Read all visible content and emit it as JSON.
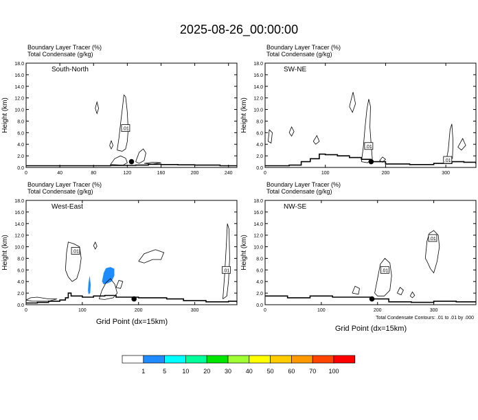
{
  "title": "2025-08-26_00:00:00",
  "panel_header_line1": "Boundary Layer Tracer   (%)",
  "panel_header_line2": "Total Condensate   (g/kg)",
  "ylabel": "Height (km)",
  "xlabel": "Grid Point (dx=15km)",
  "contour_note": "Total Condensate Contours: .01 to .01 by .000",
  "colorbar": {
    "colors": [
      "#ffffff",
      "#1e8cff",
      "#00ffff",
      "#00ff9a",
      "#00e600",
      "#a0ff32",
      "#ffff00",
      "#ffcc00",
      "#ff9900",
      "#ff4400",
      "#ff0000"
    ],
    "labels": [
      "1",
      "5",
      "10",
      "20",
      "30",
      "40",
      "50",
      "60",
      "70",
      "100"
    ]
  },
  "chart_data": [
    {
      "type": "contour",
      "name": "South-North",
      "xlim": [
        0,
        250
      ],
      "ylim": [
        0,
        18
      ],
      "xticks": [
        "0",
        "40",
        "80",
        "120",
        "160",
        "200",
        "240"
      ],
      "xtick_values": [
        0,
        40,
        80,
        120,
        160,
        200,
        240
      ],
      "yticks": [
        "0.0",
        "2.0",
        "4.0",
        "6.0",
        "8.0",
        "10.0",
        "12.0",
        "14.0",
        "16.0",
        "18.0"
      ],
      "contour_label": ".01",
      "contour_label_pos": [
        118,
        6.8
      ],
      "marker": [
        125,
        1.0
      ],
      "terrain": [
        [
          0,
          0.3
        ],
        [
          60,
          0.3
        ],
        [
          100,
          0.35
        ],
        [
          130,
          0.4
        ],
        [
          145,
          0.55
        ],
        [
          160,
          0.5
        ],
        [
          180,
          0.45
        ],
        [
          200,
          0.4
        ],
        [
          230,
          0.3
        ],
        [
          250,
          0.3
        ]
      ],
      "contours": [
        [
          [
            108,
            3.0
          ],
          [
            110,
            5.0
          ],
          [
            112,
            7.5
          ],
          [
            114,
            10.0
          ],
          [
            116,
            12.5
          ],
          [
            118,
            12.2
          ],
          [
            120,
            9.5
          ],
          [
            121,
            6.5
          ],
          [
            120,
            4.5
          ],
          [
            118,
            3.2
          ],
          [
            114,
            2.8
          ],
          [
            108,
            3.0
          ]
        ],
        [
          [
            100,
            0.5
          ],
          [
            105,
            1.5
          ],
          [
            112,
            2.0
          ],
          [
            118,
            1.6
          ],
          [
            120,
            0.8
          ],
          [
            115,
            0.4
          ],
          [
            100,
            0.5
          ]
        ],
        [
          [
            130,
            1.0
          ],
          [
            134,
            2.6
          ],
          [
            139,
            3.2
          ],
          [
            142,
            2.5
          ],
          [
            140,
            1.2
          ],
          [
            134,
            0.7
          ],
          [
            130,
            1.0
          ]
        ],
        [
          [
            140,
            0.7
          ],
          [
            150,
            0.9
          ],
          [
            160,
            0.8
          ],
          [
            150,
            0.6
          ],
          [
            140,
            0.7
          ]
        ],
        [
          [
            82,
            10.2
          ],
          [
            84,
            11.3
          ],
          [
            86,
            10.2
          ],
          [
            84,
            9.3
          ],
          [
            82,
            10.2
          ]
        ],
        [
          [
            99,
            3.8
          ],
          [
            101,
            4.6
          ],
          [
            103,
            3.8
          ],
          [
            101,
            3.2
          ],
          [
            99,
            3.8
          ]
        ]
      ],
      "shaded": []
    },
    {
      "type": "contour",
      "name": "SW-NE",
      "xlim": [
        0,
        350
      ],
      "ylim": [
        0,
        18
      ],
      "xticks": [
        "0",
        "100",
        "200",
        "300"
      ],
      "xtick_values": [
        0,
        100,
        200,
        300
      ],
      "yticks": [
        "0.0",
        "2.0",
        "4.0",
        "6.0",
        "8.0",
        "10.0",
        "12.0",
        "14.0",
        "16.0",
        "18.0"
      ],
      "contour_label": ".01",
      "contour_label_pos": [
        172,
        3.7
      ],
      "contour_label2": ".01",
      "contour_label2_pos": [
        303,
        1.3
      ],
      "marker": [
        176,
        1.0
      ],
      "terrain": [
        [
          0,
          0.3
        ],
        [
          40,
          0.4
        ],
        [
          60,
          1.0
        ],
        [
          75,
          1.5
        ],
        [
          90,
          2.3
        ],
        [
          100,
          2.2
        ],
        [
          120,
          2.0
        ],
        [
          140,
          1.7
        ],
        [
          160,
          1.4
        ],
        [
          175,
          1.0
        ],
        [
          200,
          0.6
        ],
        [
          240,
          0.5
        ],
        [
          280,
          0.7
        ],
        [
          310,
          1.0
        ],
        [
          330,
          0.9
        ],
        [
          350,
          0.6
        ]
      ],
      "contours": [
        [
          [
            160,
            1.0
          ],
          [
            163,
            3.5
          ],
          [
            166,
            7.0
          ],
          [
            169,
            10.0
          ],
          [
            172,
            11.8
          ],
          [
            175,
            10.5
          ],
          [
            174,
            7.0
          ],
          [
            176,
            4.0
          ],
          [
            178,
            1.5
          ],
          [
            170,
            0.8
          ],
          [
            160,
            1.0
          ]
        ],
        [
          [
            300,
            0.8
          ],
          [
            304,
            3.0
          ],
          [
            307,
            6.5
          ],
          [
            310,
            7.5
          ],
          [
            312,
            4.5
          ],
          [
            311,
            1.6
          ],
          [
            305,
            0.8
          ],
          [
            300,
            0.8
          ]
        ],
        [
          [
            5,
            4.5
          ],
          [
            7,
            6.5
          ],
          [
            12,
            6.0
          ],
          [
            10,
            4.2
          ],
          [
            5,
            4.5
          ]
        ],
        [
          [
            40,
            6.0
          ],
          [
            44,
            7.0
          ],
          [
            48,
            6.2
          ],
          [
            44,
            5.4
          ],
          [
            40,
            6.0
          ]
        ],
        [
          [
            140,
            10.5
          ],
          [
            146,
            13.0
          ],
          [
            150,
            11.0
          ],
          [
            145,
            9.5
          ],
          [
            140,
            10.5
          ]
        ],
        [
          [
            80,
            4.5
          ],
          [
            86,
            5.5
          ],
          [
            90,
            4.5
          ],
          [
            84,
            4.0
          ],
          [
            80,
            4.5
          ]
        ],
        [
          [
            190,
            1.2
          ],
          [
            195,
            1.8
          ],
          [
            200,
            1.4
          ],
          [
            195,
            0.9
          ],
          [
            190,
            1.2
          ]
        ],
        [
          [
            320,
            3.5
          ],
          [
            328,
            5.0
          ],
          [
            333,
            3.8
          ],
          [
            326,
            3.0
          ],
          [
            320,
            3.5
          ]
        ]
      ],
      "shaded": []
    },
    {
      "type": "contour",
      "name": "West-East",
      "xlim": [
        0,
        375
      ],
      "ylim": [
        0,
        18
      ],
      "xticks": [
        "0",
        "100",
        "200",
        "300"
      ],
      "xtick_values": [
        0,
        100,
        200,
        300
      ],
      "yticks": [
        "0.0",
        "2.0",
        "4.0",
        "6.0",
        "8.0",
        "10.0",
        "12.0",
        "14.0",
        "16.0",
        "18.0"
      ],
      "contour_label": ".01",
      "contour_label_pos": [
        88,
        9.3
      ],
      "contour_label2": ".01",
      "contour_label2_pos": [
        356,
        6.0
      ],
      "marker": [
        192,
        1.0
      ],
      "terrain": [
        [
          0,
          0.3
        ],
        [
          20,
          0.4
        ],
        [
          40,
          0.6
        ],
        [
          60,
          0.8
        ],
        [
          70,
          1.2
        ],
        [
          75,
          2.0
        ],
        [
          80,
          1.5
        ],
        [
          100,
          1.3
        ],
        [
          120,
          1.5
        ],
        [
          140,
          1.6
        ],
        [
          160,
          1.3
        ],
        [
          200,
          1.2
        ],
        [
          250,
          1.0
        ],
        [
          280,
          0.7
        ],
        [
          320,
          0.5
        ],
        [
          360,
          0.6
        ],
        [
          375,
          0.4
        ]
      ],
      "contours": [
        [
          [
            70,
            6.0
          ],
          [
            72,
            9.0
          ],
          [
            75,
            10.8
          ],
          [
            85,
            10.5
          ],
          [
            95,
            10.0
          ],
          [
            98,
            8.0
          ],
          [
            95,
            6.0
          ],
          [
            90,
            4.5
          ],
          [
            82,
            4.0
          ],
          [
            75,
            4.8
          ],
          [
            70,
            6.0
          ]
        ],
        [
          [
            200,
            7.5
          ],
          [
            210,
            8.8
          ],
          [
            230,
            9.5
          ],
          [
            245,
            9.0
          ],
          [
            240,
            7.8
          ],
          [
            225,
            7.8
          ],
          [
            210,
            7.2
          ],
          [
            200,
            7.5
          ]
        ],
        [
          [
            350,
            1.0
          ],
          [
            353,
            5.0
          ],
          [
            356,
            10.0
          ],
          [
            358,
            14.0
          ],
          [
            361,
            13.0
          ],
          [
            362,
            8.0
          ],
          [
            360,
            4.0
          ],
          [
            357,
            1.5
          ],
          [
            350,
            1.0
          ]
        ],
        [
          [
            130,
            1.0
          ],
          [
            135,
            2.5
          ],
          [
            142,
            3.8
          ],
          [
            150,
            4.5
          ],
          [
            158,
            3.5
          ],
          [
            162,
            2.0
          ],
          [
            155,
            1.2
          ],
          [
            140,
            0.9
          ],
          [
            130,
            1.0
          ]
        ],
        [
          [
            160,
            3.0
          ],
          [
            165,
            4.2
          ],
          [
            172,
            4.0
          ],
          [
            168,
            2.8
          ],
          [
            160,
            3.0
          ]
        ],
        [
          [
            0,
            0.8
          ],
          [
            8,
            1.2
          ],
          [
            20,
            1.3
          ],
          [
            40,
            1.0
          ],
          [
            55,
            1.0
          ],
          [
            40,
            0.6
          ],
          [
            10,
            0.6
          ],
          [
            0,
            0.8
          ]
        ],
        [
          [
            120,
            10.2
          ],
          [
            123,
            10.8
          ],
          [
            126,
            10.1
          ],
          [
            123,
            9.6
          ],
          [
            120,
            10.2
          ]
        ]
      ],
      "shaded": [
        {
          "color": "#1e8cff",
          "points": [
            [
              135,
              4.0
            ],
            [
              138,
              5.5
            ],
            [
              142,
              6.3
            ],
            [
              150,
              6.5
            ],
            [
              157,
              6.2
            ],
            [
              157,
              5.0
            ],
            [
              152,
              4.0
            ],
            [
              145,
              3.7
            ],
            [
              138,
              3.5
            ],
            [
              135,
              4.0
            ]
          ]
        },
        {
          "color": "#1e8cff",
          "points": [
            [
              110,
              2.5
            ],
            [
              111,
              3.8
            ],
            [
              113,
              5.0
            ],
            [
              115,
              3.5
            ],
            [
              114,
              2.0
            ],
            [
              111,
              1.8
            ],
            [
              110,
              2.5
            ]
          ]
        }
      ]
    },
    {
      "type": "contour",
      "name": "NW-SE",
      "xlim": [
        0,
        375
      ],
      "ylim": [
        0,
        18
      ],
      "xticks": [
        "0",
        "100",
        "200",
        "300"
      ],
      "xtick_values": [
        0,
        100,
        200,
        300
      ],
      "yticks": [
        "0.0",
        "2.0",
        "4.0",
        "6.0",
        "8.0",
        "10.0",
        "12.0",
        "14.0",
        "16.0",
        "18.0"
      ],
      "contour_label": ".01",
      "contour_label_pos": [
        213,
        6.0
      ],
      "contour_label2": ".01",
      "contour_label2_pos": [
        298,
        11.5
      ],
      "marker": [
        190,
        1.0
      ],
      "terrain": [
        [
          0,
          1.5
        ],
        [
          40,
          1.2
        ],
        [
          80,
          1.5
        ],
        [
          120,
          1.3
        ],
        [
          160,
          1.3
        ],
        [
          190,
          1.0
        ],
        [
          220,
          0.5
        ],
        [
          260,
          0.4
        ],
        [
          300,
          0.6
        ],
        [
          340,
          0.5
        ],
        [
          375,
          0.6
        ]
      ],
      "contours": [
        [
          [
            195,
            2.0
          ],
          [
            200,
            4.5
          ],
          [
            205,
            7.0
          ],
          [
            213,
            8.0
          ],
          [
            222,
            7.2
          ],
          [
            225,
            5.0
          ],
          [
            222,
            2.5
          ],
          [
            212,
            1.5
          ],
          [
            200,
            1.5
          ],
          [
            195,
            2.0
          ]
        ],
        [
          [
            285,
            8.0
          ],
          [
            288,
            11.0
          ],
          [
            292,
            12.3
          ],
          [
            300,
            12.8
          ],
          [
            308,
            12.0
          ],
          [
            310,
            10.0
          ],
          [
            306,
            7.5
          ],
          [
            300,
            5.5
          ],
          [
            294,
            6.2
          ],
          [
            288,
            7.5
          ],
          [
            285,
            8.0
          ]
        ],
        [
          [
            155,
            2.0
          ],
          [
            160,
            3.2
          ],
          [
            168,
            2.8
          ],
          [
            166,
            1.8
          ],
          [
            155,
            2.0
          ]
        ],
        [
          [
            235,
            2.0
          ],
          [
            240,
            3.0
          ],
          [
            246,
            2.5
          ],
          [
            242,
            1.7
          ],
          [
            235,
            2.0
          ]
        ],
        [
          [
            258,
            1.5
          ],
          [
            262,
            2.2
          ],
          [
            266,
            1.6
          ],
          [
            262,
            1.2
          ],
          [
            258,
            1.5
          ]
        ]
      ],
      "shaded": []
    }
  ]
}
